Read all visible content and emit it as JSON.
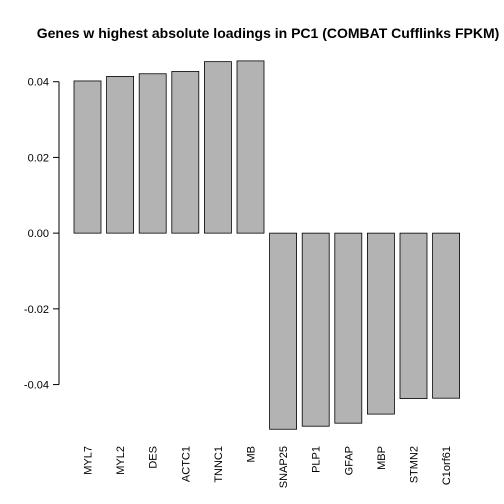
{
  "chart_data": {
    "type": "bar",
    "title": "Genes w highest absolute loadings in PC1 (COMBAT Cufflinks FPKM)",
    "xlabel": "",
    "ylabel": "",
    "categories": [
      "MYL7",
      "MYL2",
      "DES",
      "ACTC1",
      "TNNC1",
      "MB",
      "SNAP25",
      "PLP1",
      "GFAP",
      "MBP",
      "STMN2",
      "C1orf61"
    ],
    "values": [
      0.0402,
      0.0414,
      0.0421,
      0.0427,
      0.0453,
      0.0455,
      -0.0518,
      -0.051,
      -0.0502,
      -0.0478,
      -0.0437,
      -0.0436
    ],
    "yticks": [
      "-0.04",
      "-0.02",
      "0.00",
      "0.02",
      "0.04"
    ],
    "ylim": [
      -0.052,
      0.046
    ],
    "grid": false,
    "bar_color": "#b3b3b3",
    "bar_border_color": "#000000"
  }
}
